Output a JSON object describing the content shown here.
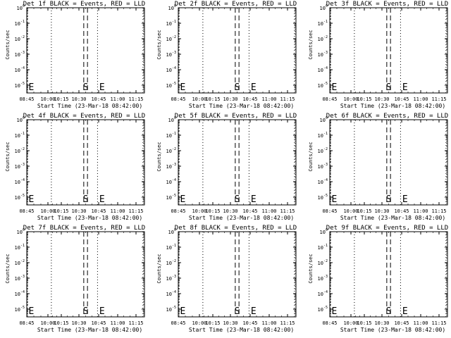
{
  "chart_data": [
    {
      "type": "line",
      "title": "Det 1f BLACK = Events, RED = LLD",
      "xlabel": "Start Time (23-Mar-18 08:42:00)",
      "ylabel": "Counts/sec"
    },
    {
      "type": "line",
      "title": "Det 2f BLACK = Events, RED = LLD",
      "xlabel": "Start Time (23-Mar-18 08:42:00)",
      "ylabel": "Counts/sec"
    },
    {
      "type": "line",
      "title": "Det 3f BLACK = Events, RED = LLD",
      "xlabel": "Start Time (23-Mar-18 08:42:00)",
      "ylabel": "Counts/sec"
    },
    {
      "type": "line",
      "title": "Det 4f BLACK = Events, RED = LLD",
      "xlabel": "Start Time (23-Mar-18 08:42:00)",
      "ylabel": "Counts/sec"
    },
    {
      "type": "line",
      "title": "Det 5f BLACK = Events, RED = LLD",
      "xlabel": "Start Time (23-Mar-18 08:42:00)",
      "ylabel": "Counts/sec"
    },
    {
      "type": "line",
      "title": "Det 6f BLACK = Events, RED = LLD",
      "xlabel": "Start Time (23-Mar-18 08:42:00)",
      "ylabel": "Counts/sec"
    },
    {
      "type": "line",
      "title": "Det 7f BLACK = Events, RED = LLD",
      "xlabel": "Start Time (23-Mar-18 08:42:00)",
      "ylabel": "Counts/sec"
    },
    {
      "type": "line",
      "title": "Det 8f BLACK = Events, RED = LLD",
      "xlabel": "Start Time (23-Mar-18 08:42:00)",
      "ylabel": "Counts/sec"
    },
    {
      "type": "line",
      "title": "Det 9f BLACK = Events, RED = LLD",
      "xlabel": "Start Time (23-Mar-18 08:42:00)",
      "ylabel": "Counts/sec"
    }
  ],
  "shared": {
    "xticks": [
      "08:45",
      "10:00",
      "10:15",
      "10:30",
      "10:45",
      "11:00",
      "11:15"
    ],
    "yticks": [
      "10^0",
      "10^-1",
      "10^-2",
      "10^-3",
      "10^-4",
      "10^-5"
    ],
    "xrange_minutes": [
      0,
      158
    ],
    "yrange_log10": [
      -5.5,
      0
    ],
    "dotted_lines_minutes": [
      -1,
      33,
      95,
      156
    ],
    "dashed_lines_minutes": [
      76.5,
      81.5
    ],
    "markers": [
      {
        "label": "E",
        "x_minutes": 0.5
      },
      {
        "label": "S",
        "x_minutes": 79
      },
      {
        "label": "E",
        "x_minutes": 101
      }
    ]
  }
}
